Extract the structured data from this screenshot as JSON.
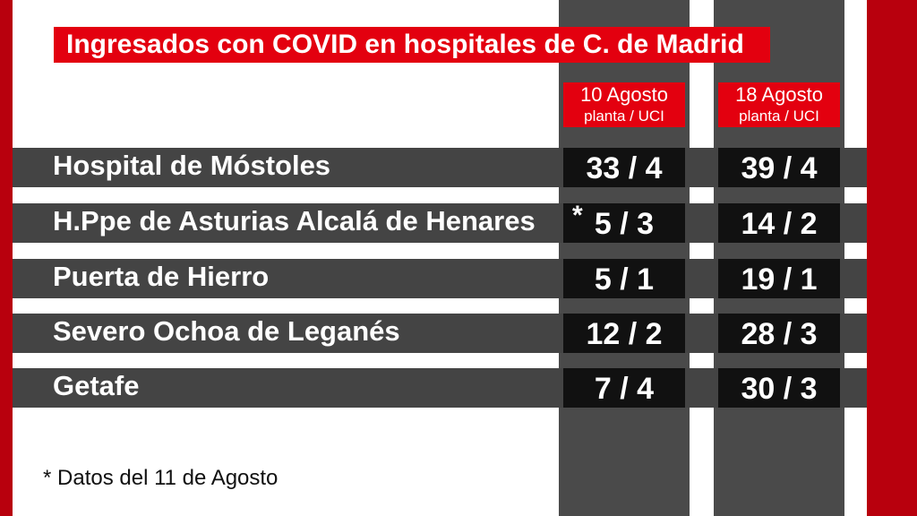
{
  "title": "Ingresados con COVID en hospitales de C. de Madrid",
  "columns": [
    {
      "date": "10 Agosto",
      "subtitle": "planta / UCI"
    },
    {
      "date": "18 Agosto",
      "subtitle": "planta / UCI"
    }
  ],
  "rows": [
    {
      "hospital": "Hospital de Móstoles",
      "values": [
        "33 / 4",
        "39 / 4"
      ]
    },
    {
      "hospital": "H.Ppe de Asturias Alcalá de Henares",
      "marker": "*",
      "values": [
        "5 / 3",
        "14 / 2"
      ]
    },
    {
      "hospital": "Puerta de Hierro",
      "values": [
        "5 / 1",
        "19 / 1"
      ]
    },
    {
      "hospital": "Severo Ochoa de Leganés",
      "values": [
        "12 / 2",
        "28 / 3"
      ]
    },
    {
      "hospital": "Getafe",
      "values": [
        "7 / 4",
        "30 / 3"
      ]
    }
  ],
  "footnote": "* Datos del 11 de Agosto",
  "colors": {
    "accent_red": "#e3000f",
    "edge_red": "#b8000d",
    "row_band": "#444444",
    "column_strip": "#4a4a4a",
    "cell_dark": "#111111",
    "text_light": "#ffffff"
  }
}
